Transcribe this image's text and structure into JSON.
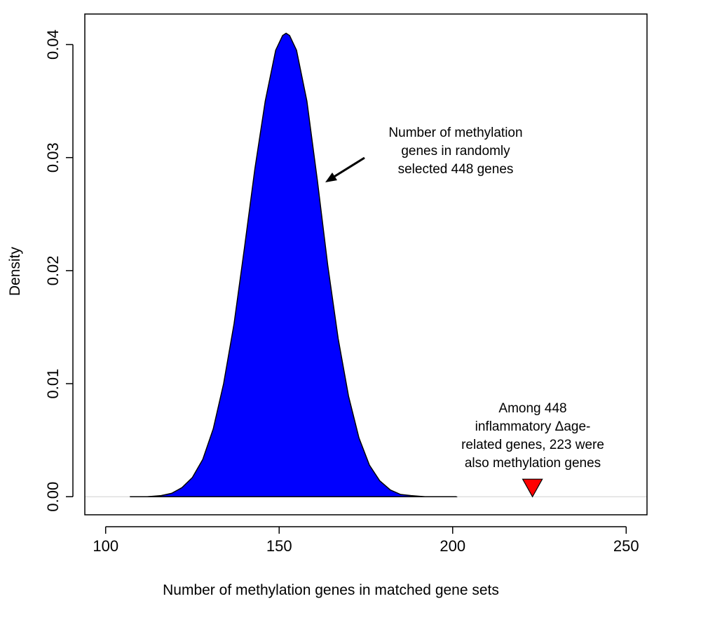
{
  "chart_data": {
    "type": "area",
    "xlabel": "Number of methylation genes in matched gene sets",
    "ylabel": "Density",
    "xlim": [
      94,
      256
    ],
    "ylim": [
      -0.0016,
      0.0427
    ],
    "x_ticks": [
      100,
      150,
      200,
      250
    ],
    "y_ticks": [
      0.0,
      0.01,
      0.02,
      0.03,
      0.04
    ],
    "x_tick_labels": [
      "100",
      "150",
      "200",
      "250"
    ],
    "y_tick_labels": [
      "0.00",
      "0.01",
      "0.02",
      "0.03",
      "0.04"
    ],
    "grid": false,
    "series": [
      {
        "color": "#0000ff",
        "x": [
          107,
          112,
          116,
          119,
          122,
          125,
          128,
          131,
          134,
          137,
          140,
          143,
          146,
          149,
          151,
          152,
          153,
          155,
          158,
          161,
          164,
          167,
          170,
          173,
          176,
          179,
          182,
          185,
          188,
          192,
          196,
          201
        ],
        "y": [
          0.0,
          0.0,
          0.0001,
          0.0003,
          0.0008,
          0.0017,
          0.0033,
          0.006,
          0.01,
          0.0153,
          0.022,
          0.029,
          0.035,
          0.0395,
          0.0408,
          0.041,
          0.0408,
          0.0395,
          0.035,
          0.028,
          0.0205,
          0.014,
          0.0089,
          0.0052,
          0.0028,
          0.0014,
          0.0006,
          0.0002,
          0.0001,
          0.0,
          0.0,
          0.0
        ]
      }
    ],
    "observed": {
      "x": 223,
      "color": "#ff0000"
    },
    "annotations": {
      "random": [
        "Number of methylation",
        "genes in randomly",
        "selected 448 genes"
      ],
      "observed": [
        "Among 448",
        "inflammatory Δage-",
        "related genes, 223 were",
        "also  methylation genes"
      ]
    }
  }
}
